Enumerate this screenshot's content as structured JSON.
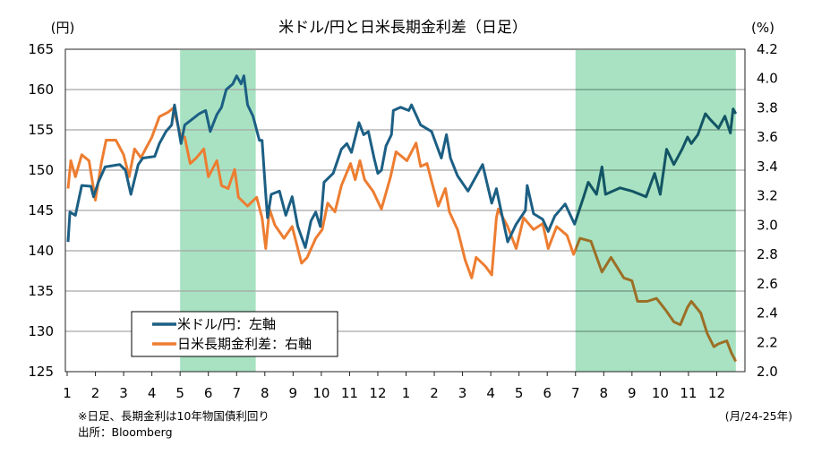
{
  "chart_data": {
    "type": "line",
    "title": "米ドル/円と日米長期金利差（日足）",
    "ylabel_left": "(円)",
    "ylabel_right": "(%)",
    "xlabel": "(月/24-25年)",
    "ylim_left": [
      125,
      165
    ],
    "ylim_right": [
      2.0,
      4.2
    ],
    "yticks_left": [
      "165",
      "160",
      "155",
      "150",
      "145",
      "140",
      "135",
      "130",
      "125"
    ],
    "yticks_right": [
      "4.2",
      "4.0",
      "3.8",
      "3.6",
      "3.4",
      "3.2",
      "3.0",
      "2.8",
      "2.6",
      "2.4",
      "2.2",
      "2.0"
    ],
    "xticks": [
      "1",
      "2",
      "3",
      "4",
      "5",
      "6",
      "7",
      "8",
      "9",
      "10",
      "11",
      "12",
      "1",
      "2",
      "3",
      "4",
      "5",
      "6",
      "7",
      "8",
      "9",
      "10",
      "11",
      "12"
    ],
    "xlim": [
      "2024-01-01",
      "2025-12-31"
    ],
    "grid": true,
    "legend_position": "bottom-left",
    "shaded_periods": [
      [
        "2024-05-01",
        "2024-07-22"
      ],
      [
        "2025-07-01",
        "2025-12-22"
      ]
    ],
    "shade_color": "#a8e2c2",
    "notes": [
      "※日足、長期金利は10年物国債利回り",
      "出所：Bloomberg"
    ],
    "series": [
      {
        "name": "米ドル/円：左軸",
        "axis": "left",
        "color": "#1c5f84",
        "points": [
          [
            "2024-01-02",
            141.1
          ],
          [
            "2024-01-04",
            144.8
          ],
          [
            "2024-01-10",
            144.4
          ],
          [
            "2024-01-17",
            148.1
          ],
          [
            "2024-01-27",
            148.0
          ],
          [
            "2024-01-30",
            146.7
          ],
          [
            "2024-02-04",
            148.5
          ],
          [
            "2024-02-11",
            150.4
          ],
          [
            "2024-02-26",
            150.7
          ],
          [
            "2024-03-03",
            150.0
          ],
          [
            "2024-03-09",
            147.0
          ],
          [
            "2024-03-17",
            150.7
          ],
          [
            "2024-03-22",
            151.5
          ],
          [
            "2024-04-04",
            151.7
          ],
          [
            "2024-04-09",
            153.3
          ],
          [
            "2024-04-16",
            154.8
          ],
          [
            "2024-04-22",
            155.6
          ],
          [
            "2024-04-25",
            158.1
          ],
          [
            "2024-05-02",
            153.3
          ],
          [
            "2024-05-06",
            155.6
          ],
          [
            "2024-05-14",
            156.3
          ],
          [
            "2024-05-22",
            157.0
          ],
          [
            "2024-05-29",
            157.4
          ],
          [
            "2024-06-03",
            154.8
          ],
          [
            "2024-06-10",
            156.9
          ],
          [
            "2024-06-15",
            157.8
          ],
          [
            "2024-06-20",
            160.0
          ],
          [
            "2024-06-27",
            160.7
          ],
          [
            "2024-07-01",
            161.7
          ],
          [
            "2024-07-06",
            160.7
          ],
          [
            "2024-07-09",
            161.7
          ],
          [
            "2024-07-13",
            158.1
          ],
          [
            "2024-07-19",
            156.7
          ],
          [
            "2024-07-26",
            153.7
          ],
          [
            "2024-07-29",
            153.7
          ],
          [
            "2024-08-02",
            147.0
          ],
          [
            "2024-08-04",
            144.1
          ],
          [
            "2024-08-08",
            147.0
          ],
          [
            "2024-08-17",
            147.4
          ],
          [
            "2024-08-24",
            144.4
          ],
          [
            "2024-08-31",
            146.7
          ],
          [
            "2024-09-06",
            143.0
          ],
          [
            "2024-09-14",
            140.4
          ],
          [
            "2024-09-20",
            143.7
          ],
          [
            "2024-09-25",
            144.8
          ],
          [
            "2024-09-30",
            143.0
          ],
          [
            "2024-10-04",
            148.5
          ],
          [
            "2024-10-14",
            149.6
          ],
          [
            "2024-10-23",
            152.6
          ],
          [
            "2024-10-29",
            153.3
          ],
          [
            "2024-11-03",
            152.2
          ],
          [
            "2024-11-11",
            155.9
          ],
          [
            "2024-11-16",
            154.4
          ],
          [
            "2024-11-21",
            154.8
          ],
          [
            "2024-11-27",
            151.5
          ],
          [
            "2024-12-01",
            149.6
          ],
          [
            "2024-12-05",
            150.0
          ],
          [
            "2024-12-10",
            153.0
          ],
          [
            "2024-12-16",
            154.4
          ],
          [
            "2024-12-18",
            157.4
          ],
          [
            "2024-12-26",
            157.8
          ],
          [
            "2025-01-04",
            157.4
          ],
          [
            "2025-01-07",
            158.1
          ],
          [
            "2025-01-17",
            155.6
          ],
          [
            "2025-01-29",
            154.8
          ],
          [
            "2025-02-08",
            151.5
          ],
          [
            "2025-02-13",
            154.4
          ],
          [
            "2025-02-17",
            151.5
          ],
          [
            "2025-02-24",
            149.3
          ],
          [
            "2025-03-07",
            147.4
          ],
          [
            "2025-03-23",
            150.7
          ],
          [
            "2025-04-02",
            145.9
          ],
          [
            "2025-04-07",
            147.7
          ],
          [
            "2025-04-15",
            143.3
          ],
          [
            "2025-04-19",
            141.1
          ],
          [
            "2025-04-28",
            143.3
          ],
          [
            "2025-05-08",
            145.0
          ],
          [
            "2025-05-10",
            148.1
          ],
          [
            "2025-05-17",
            144.6
          ],
          [
            "2025-05-27",
            143.9
          ],
          [
            "2025-06-02",
            142.4
          ],
          [
            "2025-06-09",
            144.3
          ],
          [
            "2025-06-20",
            145.8
          ],
          [
            "2025-06-30",
            143.3
          ],
          [
            "2025-07-10",
            146.7
          ],
          [
            "2025-07-15",
            148.5
          ],
          [
            "2025-07-24",
            147.0
          ],
          [
            "2025-07-30",
            150.4
          ],
          [
            "2025-08-03",
            147.0
          ],
          [
            "2025-08-19",
            147.8
          ],
          [
            "2025-09-01",
            147.4
          ],
          [
            "2025-09-16",
            146.7
          ],
          [
            "2025-09-25",
            149.6
          ],
          [
            "2025-10-01",
            147.0
          ],
          [
            "2025-10-08",
            152.6
          ],
          [
            "2025-10-16",
            150.7
          ],
          [
            "2025-10-25",
            152.6
          ],
          [
            "2025-10-31",
            154.1
          ],
          [
            "2025-11-04",
            153.3
          ],
          [
            "2025-11-11",
            154.4
          ],
          [
            "2025-11-19",
            157.0
          ],
          [
            "2025-11-24",
            156.3
          ],
          [
            "2025-12-03",
            155.2
          ],
          [
            "2025-12-10",
            156.7
          ],
          [
            "2025-12-16",
            154.6
          ],
          [
            "2025-12-19",
            157.6
          ],
          [
            "2025-12-22",
            157.0
          ]
        ]
      },
      {
        "name": "日米長期金利差：右軸",
        "axis": "right",
        "color": "#ed7d31",
        "points": [
          [
            "2024-01-02",
            3.25
          ],
          [
            "2024-01-05",
            3.44
          ],
          [
            "2024-01-10",
            3.33
          ],
          [
            "2024-01-17",
            3.48
          ],
          [
            "2024-01-25",
            3.44
          ],
          [
            "2024-02-01",
            3.17
          ],
          [
            "2024-02-07",
            3.42
          ],
          [
            "2024-02-12",
            3.58
          ],
          [
            "2024-02-22",
            3.58
          ],
          [
            "2024-03-01",
            3.48
          ],
          [
            "2024-03-07",
            3.33
          ],
          [
            "2024-03-13",
            3.52
          ],
          [
            "2024-03-20",
            3.46
          ],
          [
            "2024-04-01",
            3.6
          ],
          [
            "2024-04-09",
            3.74
          ],
          [
            "2024-04-18",
            3.77
          ],
          [
            "2024-04-24",
            3.8
          ],
          [
            "2024-05-01",
            3.62
          ],
          [
            "2024-05-06",
            3.6
          ],
          [
            "2024-05-12",
            3.42
          ],
          [
            "2024-05-19",
            3.46
          ],
          [
            "2024-05-27",
            3.52
          ],
          [
            "2024-06-01",
            3.33
          ],
          [
            "2024-06-10",
            3.44
          ],
          [
            "2024-06-15",
            3.27
          ],
          [
            "2024-06-22",
            3.25
          ],
          [
            "2024-06-29",
            3.38
          ],
          [
            "2024-07-03",
            3.19
          ],
          [
            "2024-07-13",
            3.13
          ],
          [
            "2024-07-23",
            3.19
          ],
          [
            "2024-07-29",
            3.05
          ],
          [
            "2024-08-02",
            2.84
          ],
          [
            "2024-08-06",
            3.11
          ],
          [
            "2024-08-12",
            3.0
          ],
          [
            "2024-08-22",
            2.91
          ],
          [
            "2024-08-31",
            2.99
          ],
          [
            "2024-09-10",
            2.74
          ],
          [
            "2024-09-16",
            2.78
          ],
          [
            "2024-09-25",
            2.91
          ],
          [
            "2024-10-02",
            2.97
          ],
          [
            "2024-10-08",
            3.15
          ],
          [
            "2024-10-16",
            3.09
          ],
          [
            "2024-10-23",
            3.27
          ],
          [
            "2024-11-02",
            3.42
          ],
          [
            "2024-11-07",
            3.31
          ],
          [
            "2024-11-12",
            3.44
          ],
          [
            "2024-11-17",
            3.31
          ],
          [
            "2024-11-26",
            3.23
          ],
          [
            "2024-12-05",
            3.11
          ],
          [
            "2024-12-15",
            3.33
          ],
          [
            "2024-12-21",
            3.5
          ],
          [
            "2025-01-02",
            3.44
          ],
          [
            "2025-01-12",
            3.56
          ],
          [
            "2025-01-17",
            3.4
          ],
          [
            "2025-01-24",
            3.42
          ],
          [
            "2025-01-29",
            3.3
          ],
          [
            "2025-02-05",
            3.13
          ],
          [
            "2025-02-12",
            3.25
          ],
          [
            "2025-02-16",
            3.09
          ],
          [
            "2025-02-24",
            2.97
          ],
          [
            "2025-03-04",
            2.76
          ],
          [
            "2025-03-11",
            2.64
          ],
          [
            "2025-03-16",
            2.78
          ],
          [
            "2025-03-26",
            2.72
          ],
          [
            "2025-04-02",
            2.66
          ],
          [
            "2025-04-07",
            3.05
          ],
          [
            "2025-04-09",
            3.11
          ],
          [
            "2025-04-19",
            2.99
          ],
          [
            "2025-04-28",
            2.84
          ],
          [
            "2025-05-06",
            3.05
          ],
          [
            "2025-05-17",
            2.97
          ],
          [
            "2025-05-27",
            3.01
          ],
          [
            "2025-06-02",
            2.84
          ],
          [
            "2025-06-11",
            2.99
          ],
          [
            "2025-06-22",
            2.93
          ],
          [
            "2025-06-29",
            2.8
          ],
          [
            "2025-07-06",
            2.91
          ],
          [
            "2025-07-18",
            2.89
          ],
          [
            "2025-07-30",
            2.68
          ],
          [
            "2025-08-09",
            2.78
          ],
          [
            "2025-08-23",
            2.64
          ],
          [
            "2025-09-01",
            2.62
          ],
          [
            "2025-09-07",
            2.48
          ],
          [
            "2025-09-17",
            2.48
          ],
          [
            "2025-09-27",
            2.5
          ],
          [
            "2025-10-07",
            2.42
          ],
          [
            "2025-10-16",
            2.34
          ],
          [
            "2025-10-23",
            2.32
          ],
          [
            "2025-10-31",
            2.44
          ],
          [
            "2025-11-04",
            2.48
          ],
          [
            "2025-11-14",
            2.4
          ],
          [
            "2025-11-21",
            2.26
          ],
          [
            "2025-11-28",
            2.17
          ],
          [
            "2025-12-03",
            2.19
          ],
          [
            "2025-12-12",
            2.21
          ],
          [
            "2025-12-17",
            2.13
          ],
          [
            "2025-12-22",
            2.07
          ]
        ]
      }
    ]
  }
}
